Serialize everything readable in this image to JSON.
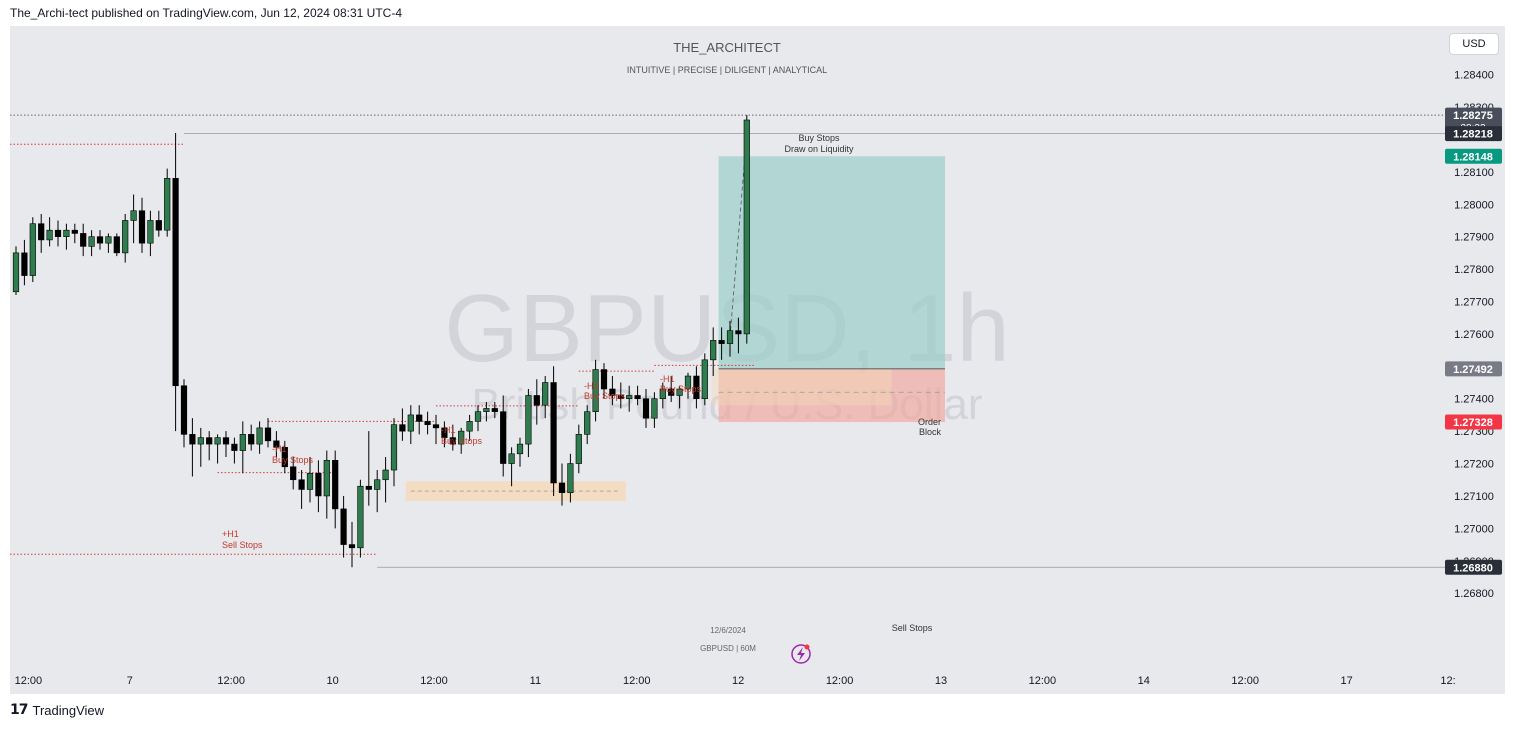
{
  "publisher_line": "The_Archi-tect published on TradingView.com, Jun 12, 2024 08:31 UTC-4",
  "brand": "TradingView",
  "currency_button": "USD",
  "header_title": "THE_ARCHITECT",
  "header_subtitle": "INTUITIVE | PRECISE | DILIGENT | ANALYTICAL",
  "watermark_symbol": "GBPUSD, 1h",
  "watermark_desc": "British Pound / U.S. Dollar",
  "date_label": "12/6/2024",
  "chart_label": "GBPUSD | 60M",
  "colors": {
    "up": "#2f7d4e",
    "down": "#000000",
    "stop_line": "#d23b3b",
    "target_zone": "#9fcfca",
    "stop_zone": "#f1a9a0",
    "order_block": "#f5d9b8"
  },
  "chart_data": {
    "type": "candlestick",
    "symbol": "GBPUSD",
    "timeframe": "60M",
    "y_axis": {
      "min": 1.266,
      "max": 1.2855,
      "ticks": [
        "1.28400",
        "1.28300",
        "1.28100",
        "1.28000",
        "1.27900",
        "1.27800",
        "1.27700",
        "1.27600",
        "1.27400",
        "1.27300",
        "1.27200",
        "1.27100",
        "1.27000",
        "1.26900",
        "1.26800"
      ]
    },
    "x_axis": {
      "labels": [
        {
          "text": "12:00",
          "x": 0.2
        },
        {
          "text": "7",
          "x": 6.2
        },
        {
          "text": "12:00",
          "x": 12.2
        },
        {
          "text": "10",
          "x": 18.2
        },
        {
          "text": "12:00",
          "x": 24.2
        },
        {
          "text": "11",
          "x": 30.2
        },
        {
          "text": "12:00",
          "x": 36.2
        },
        {
          "text": "12",
          "x": 42.2
        },
        {
          "text": "12:00",
          "x": 48.2
        },
        {
          "text": "13",
          "x": 54.2
        },
        {
          "text": "12:00",
          "x": 60.2
        },
        {
          "text": "14",
          "x": 66.2
        },
        {
          "text": "12:00",
          "x": 72.2
        },
        {
          "text": "17",
          "x": 78.2
        },
        {
          "text": "12:",
          "x": 84.2
        }
      ]
    },
    "price_badges": [
      {
        "price": 1.28275,
        "label": "1.28275",
        "sub": "28:32",
        "color": "#4a4e5a"
      },
      {
        "price": 1.28218,
        "label": "1.28218",
        "color": "#2a2e39"
      },
      {
        "price": 1.28148,
        "label": "1.28148",
        "color": "#089981"
      },
      {
        "price": 1.27492,
        "label": "1.27492",
        "color": "#787b86"
      },
      {
        "price": 1.27328,
        "label": "1.27328",
        "color": "#f23645"
      },
      {
        "price": 1.2688,
        "label": "1.26880",
        "color": "#2a2e39"
      }
    ],
    "candles": [
      {
        "o": 1.2773,
        "h": 1.2787,
        "l": 1.2772,
        "c": 1.2785
      },
      {
        "o": 1.2785,
        "h": 1.2789,
        "l": 1.2775,
        "c": 1.2778
      },
      {
        "o": 1.2778,
        "h": 1.2796,
        "l": 1.2776,
        "c": 1.2794
      },
      {
        "o": 1.2794,
        "h": 1.2797,
        "l": 1.2785,
        "c": 1.2789
      },
      {
        "o": 1.2789,
        "h": 1.2796,
        "l": 1.2787,
        "c": 1.2792
      },
      {
        "o": 1.2792,
        "h": 1.2795,
        "l": 1.2787,
        "c": 1.279
      },
      {
        "o": 1.279,
        "h": 1.2794,
        "l": 1.2786,
        "c": 1.2792
      },
      {
        "o": 1.2792,
        "h": 1.2794,
        "l": 1.2788,
        "c": 1.2791
      },
      {
        "o": 1.2791,
        "h": 1.2794,
        "l": 1.2784,
        "c": 1.2787
      },
      {
        "o": 1.2787,
        "h": 1.2792,
        "l": 1.2784,
        "c": 1.279
      },
      {
        "o": 1.279,
        "h": 1.2792,
        "l": 1.2786,
        "c": 1.2788
      },
      {
        "o": 1.2788,
        "h": 1.2791,
        "l": 1.2785,
        "c": 1.279
      },
      {
        "o": 1.279,
        "h": 1.2791,
        "l": 1.2784,
        "c": 1.2785
      },
      {
        "o": 1.2785,
        "h": 1.2797,
        "l": 1.2782,
        "c": 1.2795
      },
      {
        "o": 1.2795,
        "h": 1.2803,
        "l": 1.2788,
        "c": 1.2798
      },
      {
        "o": 1.2798,
        "h": 1.2802,
        "l": 1.2785,
        "c": 1.2788
      },
      {
        "o": 1.2788,
        "h": 1.2798,
        "l": 1.2784,
        "c": 1.2795
      },
      {
        "o": 1.2795,
        "h": 1.2798,
        "l": 1.279,
        "c": 1.2792
      },
      {
        "o": 1.2792,
        "h": 1.2811,
        "l": 1.279,
        "c": 1.2808
      },
      {
        "o": 1.2808,
        "h": 1.2822,
        "l": 1.273,
        "c": 1.2744
      },
      {
        "o": 1.2744,
        "h": 1.2746,
        "l": 1.2725,
        "c": 1.2729
      },
      {
        "o": 1.2729,
        "h": 1.2734,
        "l": 1.2716,
        "c": 1.2726
      },
      {
        "o": 1.2726,
        "h": 1.2731,
        "l": 1.2719,
        "c": 1.2728
      },
      {
        "o": 1.2728,
        "h": 1.273,
        "l": 1.2721,
        "c": 1.2726
      },
      {
        "o": 1.2726,
        "h": 1.2729,
        "l": 1.272,
        "c": 1.2728
      },
      {
        "o": 1.2728,
        "h": 1.273,
        "l": 1.2722,
        "c": 1.2726
      },
      {
        "o": 1.2726,
        "h": 1.2728,
        "l": 1.272,
        "c": 1.2724
      },
      {
        "o": 1.2724,
        "h": 1.2733,
        "l": 1.2717,
        "c": 1.2729
      },
      {
        "o": 1.2729,
        "h": 1.2732,
        "l": 1.2724,
        "c": 1.2726
      },
      {
        "o": 1.2726,
        "h": 1.2733,
        "l": 1.2723,
        "c": 1.2731
      },
      {
        "o": 1.2731,
        "h": 1.2734,
        "l": 1.2725,
        "c": 1.2727
      },
      {
        "o": 1.2727,
        "h": 1.273,
        "l": 1.2722,
        "c": 1.2725
      },
      {
        "o": 1.2725,
        "h": 1.2727,
        "l": 1.2717,
        "c": 1.2719
      },
      {
        "o": 1.2719,
        "h": 1.2722,
        "l": 1.2712,
        "c": 1.2715
      },
      {
        "o": 1.2715,
        "h": 1.2718,
        "l": 1.2706,
        "c": 1.2712
      },
      {
        "o": 1.2712,
        "h": 1.2722,
        "l": 1.2708,
        "c": 1.2717
      },
      {
        "o": 1.2717,
        "h": 1.2721,
        "l": 1.2705,
        "c": 1.271
      },
      {
        "o": 1.271,
        "h": 1.2724,
        "l": 1.2703,
        "c": 1.2721
      },
      {
        "o": 1.2721,
        "h": 1.2724,
        "l": 1.27,
        "c": 1.2706
      },
      {
        "o": 1.2706,
        "h": 1.271,
        "l": 1.2691,
        "c": 1.2695
      },
      {
        "o": 1.2695,
        "h": 1.2702,
        "l": 1.2688,
        "c": 1.2694
      },
      {
        "o": 1.2694,
        "h": 1.2715,
        "l": 1.2691,
        "c": 1.2713
      },
      {
        "o": 1.2713,
        "h": 1.273,
        "l": 1.2707,
        "c": 1.2712
      },
      {
        "o": 1.2712,
        "h": 1.2718,
        "l": 1.2705,
        "c": 1.2715
      },
      {
        "o": 1.2715,
        "h": 1.2722,
        "l": 1.2708,
        "c": 1.2718
      },
      {
        "o": 1.2718,
        "h": 1.2734,
        "l": 1.2713,
        "c": 1.2732
      },
      {
        "o": 1.2732,
        "h": 1.2737,
        "l": 1.2727,
        "c": 1.273
      },
      {
        "o": 1.273,
        "h": 1.2738,
        "l": 1.2726,
        "c": 1.2735
      },
      {
        "o": 1.2735,
        "h": 1.2738,
        "l": 1.2729,
        "c": 1.2733
      },
      {
        "o": 1.2733,
        "h": 1.2736,
        "l": 1.2729,
        "c": 1.2732
      },
      {
        "o": 1.2732,
        "h": 1.2735,
        "l": 1.2726,
        "c": 1.2731
      },
      {
        "o": 1.2731,
        "h": 1.2733,
        "l": 1.2725,
        "c": 1.2728
      },
      {
        "o": 1.2728,
        "h": 1.2732,
        "l": 1.2724,
        "c": 1.2726
      },
      {
        "o": 1.2726,
        "h": 1.2731,
        "l": 1.2723,
        "c": 1.273
      },
      {
        "o": 1.273,
        "h": 1.2735,
        "l": 1.2727,
        "c": 1.2733
      },
      {
        "o": 1.2733,
        "h": 1.2738,
        "l": 1.273,
        "c": 1.2736
      },
      {
        "o": 1.2736,
        "h": 1.2739,
        "l": 1.2733,
        "c": 1.2737
      },
      {
        "o": 1.2737,
        "h": 1.2739,
        "l": 1.2734,
        "c": 1.2736
      },
      {
        "o": 1.2736,
        "h": 1.2741,
        "l": 1.2716,
        "c": 1.272
      },
      {
        "o": 1.272,
        "h": 1.2725,
        "l": 1.2713,
        "c": 1.2723
      },
      {
        "o": 1.2723,
        "h": 1.2728,
        "l": 1.2719,
        "c": 1.2726
      },
      {
        "o": 1.2726,
        "h": 1.2743,
        "l": 1.2722,
        "c": 1.2741
      },
      {
        "o": 1.2741,
        "h": 1.2746,
        "l": 1.2732,
        "c": 1.2738
      },
      {
        "o": 1.2738,
        "h": 1.2747,
        "l": 1.2734,
        "c": 1.2745
      },
      {
        "o": 1.2745,
        "h": 1.275,
        "l": 1.271,
        "c": 1.2714
      },
      {
        "o": 1.2714,
        "h": 1.272,
        "l": 1.2707,
        "c": 1.2711
      },
      {
        "o": 1.2711,
        "h": 1.2723,
        "l": 1.2708,
        "c": 1.272
      },
      {
        "o": 1.272,
        "h": 1.2732,
        "l": 1.2717,
        "c": 1.2729
      },
      {
        "o": 1.2729,
        "h": 1.2738,
        "l": 1.2726,
        "c": 1.2736
      },
      {
        "o": 1.2736,
        "h": 1.2752,
        "l": 1.2733,
        "c": 1.2749
      },
      {
        "o": 1.2749,
        "h": 1.2751,
        "l": 1.274,
        "c": 1.2743
      },
      {
        "o": 1.2743,
        "h": 1.2747,
        "l": 1.2738,
        "c": 1.2741
      },
      {
        "o": 1.2741,
        "h": 1.2745,
        "l": 1.2737,
        "c": 1.274
      },
      {
        "o": 1.274,
        "h": 1.2744,
        "l": 1.2736,
        "c": 1.2741
      },
      {
        "o": 1.2741,
        "h": 1.2744,
        "l": 1.2738,
        "c": 1.274
      },
      {
        "o": 1.274,
        "h": 1.2743,
        "l": 1.2731,
        "c": 1.2734
      },
      {
        "o": 1.2734,
        "h": 1.2742,
        "l": 1.2731,
        "c": 1.274
      },
      {
        "o": 1.274,
        "h": 1.2745,
        "l": 1.2737,
        "c": 1.2743
      },
      {
        "o": 1.2743,
        "h": 1.2747,
        "l": 1.2739,
        "c": 1.2741
      },
      {
        "o": 1.2741,
        "h": 1.2744,
        "l": 1.2737,
        "c": 1.2743
      },
      {
        "o": 1.2743,
        "h": 1.2748,
        "l": 1.274,
        "c": 1.2747
      },
      {
        "o": 1.2747,
        "h": 1.275,
        "l": 1.2737,
        "c": 1.274
      },
      {
        "o": 1.274,
        "h": 1.2754,
        "l": 1.2738,
        "c": 1.2752
      },
      {
        "o": 1.2752,
        "h": 1.2762,
        "l": 1.2747,
        "c": 1.2758
      },
      {
        "o": 1.2758,
        "h": 1.2762,
        "l": 1.2752,
        "c": 1.2757
      },
      {
        "o": 1.2757,
        "h": 1.2764,
        "l": 1.2753,
        "c": 1.2761
      },
      {
        "o": 1.2761,
        "h": 1.2765,
        "l": 1.2754,
        "c": 1.276
      },
      {
        "o": 1.276,
        "h": 1.28275,
        "l": 1.2757,
        "c": 1.2826
      }
    ]
  },
  "annotations": {
    "buy_stops_1_a": "-H1",
    "buy_stops_1_b": "Buy Stops",
    "buy_stops_2_a": "-H1",
    "buy_stops_2_b": "Buy Stops",
    "buy_stops_3_a": "-H1",
    "buy_stops_3_b": "Buy Stops",
    "buy_stops_4_a": "-H1",
    "buy_stops_4_b": "Buy Stops",
    "sell_stops_a": "+H1",
    "sell_stops_b": "Sell Stops",
    "top_buy_stops": "Buy Stops",
    "draw_on_liquidity": "Draw on Liquidity",
    "order_block_a": "Order",
    "order_block_b": "Block",
    "bottom_sell_stops": "Sell Stops"
  }
}
